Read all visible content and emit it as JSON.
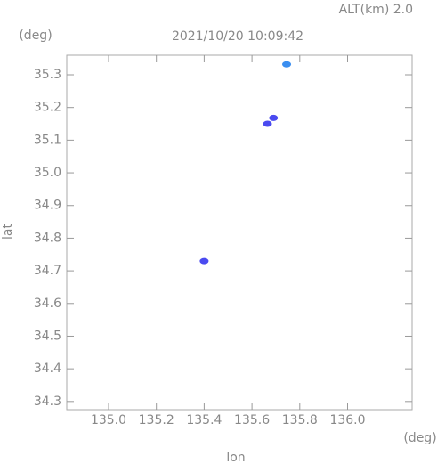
{
  "chart_data": {
    "type": "scatter",
    "title": "2021/10/20 10:09:42",
    "annotation": "ALT(km) 2.0",
    "y_unit": "(deg)",
    "x_unit": "(deg)",
    "xlabel": "lon",
    "ylabel": "lat",
    "xlim": [
      134.825,
      136.27
    ],
    "ylim": [
      34.275,
      35.36
    ],
    "xticks": [
      {
        "value": 135,
        "label": "135.0"
      },
      135.2,
      135.4,
      135.6,
      135.8,
      {
        "value": 136,
        "label": "136.0"
      }
    ],
    "yticks": [
      34.3,
      34.4,
      34.5,
      34.6,
      34.7,
      34.8,
      34.9,
      {
        "value": 35,
        "label": "35.0"
      },
      35.1,
      35.2,
      35.3
    ],
    "series": [
      {
        "color": "#3a8ef0",
        "x": [
          135.745
        ],
        "y": [
          35.332
        ]
      },
      {
        "color": "#4a4af0",
        "x": [
          135.69,
          135.665,
          135.4
        ],
        "y": [
          35.168,
          35.15,
          34.73
        ]
      }
    ]
  }
}
